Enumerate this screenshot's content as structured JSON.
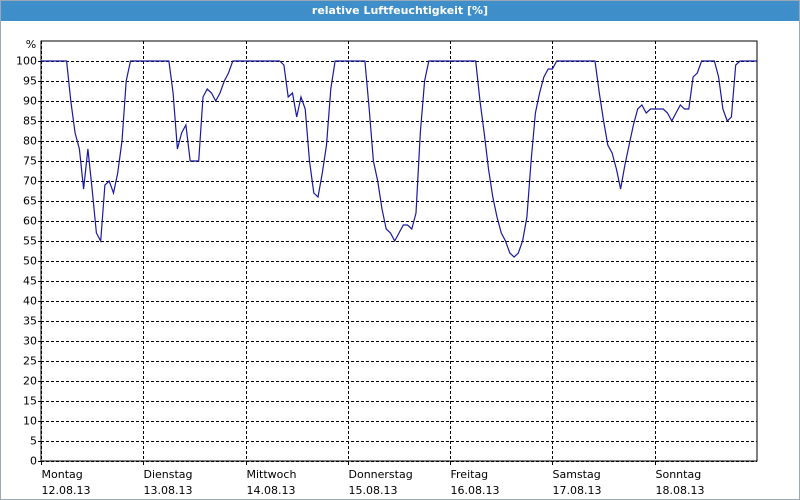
{
  "chart_data": {
    "type": "line",
    "title": "relative Luftfeuchtigkeit [%]",
    "y_label": "%",
    "x": [
      0,
      1,
      2,
      3,
      4,
      5,
      6,
      7,
      8,
      9,
      10,
      11,
      12,
      13,
      14,
      15,
      16,
      17,
      18,
      19,
      20,
      21,
      22,
      23,
      24,
      25,
      26,
      27,
      28,
      29,
      30,
      31,
      32,
      33,
      34,
      35,
      36,
      37,
      38,
      39,
      40,
      41,
      42,
      43,
      44,
      45,
      46,
      47,
      48,
      49,
      50,
      51,
      52,
      53,
      54,
      55,
      56,
      57,
      58,
      59,
      60,
      61,
      62,
      63,
      64,
      65,
      66,
      67,
      68,
      69,
      70,
      71,
      72,
      73,
      74,
      75,
      76,
      77,
      78,
      79,
      80,
      81,
      82,
      83,
      84,
      85,
      86,
      87,
      88,
      89,
      90,
      91,
      92,
      93,
      94,
      95,
      96,
      97,
      98,
      99,
      100,
      101,
      102,
      103,
      104,
      105,
      106,
      107,
      108,
      109,
      110,
      111,
      112,
      113,
      114,
      115,
      116,
      117,
      118,
      119,
      120,
      121,
      122,
      123,
      124,
      125,
      126,
      127,
      128,
      129,
      130,
      131,
      132,
      133,
      134,
      135,
      136,
      137,
      138,
      139,
      140,
      141,
      142,
      143,
      144,
      145,
      146,
      147,
      148,
      149,
      150,
      151,
      152,
      153,
      154,
      155,
      156,
      157,
      158,
      159,
      160,
      161,
      162,
      163,
      164,
      165,
      166,
      167,
      168
    ],
    "series": [
      {
        "color": "#1a1a9e",
        "values": [
          100,
          100,
          100,
          100,
          100,
          100,
          100,
          90,
          82,
          78,
          68,
          78,
          68,
          57,
          55,
          69,
          70,
          67,
          72,
          80,
          95,
          100,
          100,
          100,
          100,
          100,
          100,
          100,
          100,
          100,
          100,
          92,
          78,
          82,
          84,
          75,
          75,
          75,
          91,
          93,
          92,
          90,
          92,
          95,
          97,
          100,
          100,
          100,
          100,
          100,
          100,
          100,
          100,
          100,
          100,
          100,
          100,
          99,
          91,
          92,
          86,
          91,
          88,
          75,
          67,
          66,
          72,
          79,
          93,
          100,
          100,
          100,
          100,
          100,
          100,
          100,
          100,
          88,
          75,
          70,
          63,
          58,
          57,
          55,
          57,
          59,
          59,
          58,
          62,
          82,
          95,
          100,
          100,
          100,
          100,
          100,
          100,
          100,
          100,
          100,
          100,
          100,
          100,
          90,
          82,
          73,
          66,
          61,
          57,
          55,
          52,
          51,
          52,
          55,
          61,
          75,
          87,
          92,
          96,
          98,
          98,
          100,
          100,
          100,
          100,
          100,
          100,
          100,
          100,
          100,
          100,
          92,
          85,
          79,
          77,
          73,
          68,
          74,
          79,
          84,
          88,
          89,
          87,
          88,
          88,
          88,
          88,
          87,
          85,
          87,
          89,
          88,
          88,
          96,
          97,
          100,
          100,
          100,
          100,
          96,
          88,
          85,
          86,
          99,
          100,
          100,
          100,
          100,
          100
        ]
      }
    ],
    "xlim": [
      0,
      168
    ],
    "xticks": [
      {
        "value": 0,
        "label": [
          "Montag",
          "12.08.13"
        ]
      },
      {
        "value": 24,
        "label": [
          "Dienstag",
          "13.08.13"
        ]
      },
      {
        "value": 48,
        "label": [
          "Mittwoch",
          "14.08.13"
        ]
      },
      {
        "value": 72,
        "label": [
          "Donnerstag",
          "15.08.13"
        ]
      },
      {
        "value": 96,
        "label": [
          "Freitag",
          "16.08.13"
        ]
      },
      {
        "value": 120,
        "label": [
          "Samstag",
          "17.08.13"
        ]
      },
      {
        "value": 144,
        "label": [
          "Sonntag",
          "18.08.13"
        ]
      }
    ],
    "ylim": [
      0,
      100
    ],
    "yticks": [
      0,
      5,
      10,
      15,
      20,
      25,
      30,
      35,
      40,
      45,
      50,
      55,
      60,
      65,
      70,
      75,
      80,
      85,
      90,
      95,
      100
    ],
    "grid": true
  }
}
